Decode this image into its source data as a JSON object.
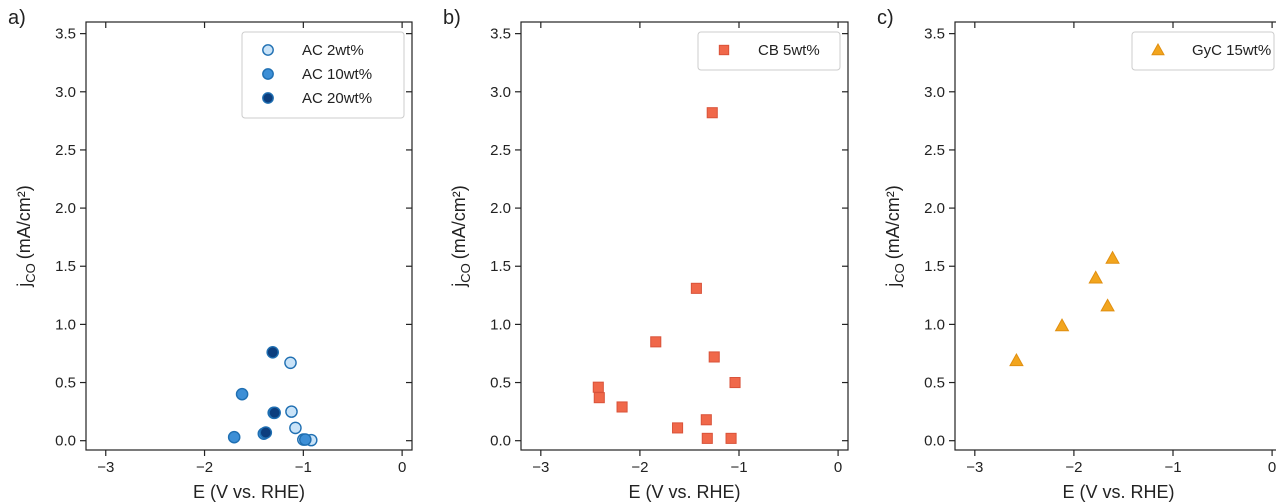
{
  "colors": {
    "ac_2wt": "#c9e3f8",
    "ac_10wt": "#3d8fd6",
    "ac_20wt": "#0c3e7e",
    "ac_edge": "#1f6fb2",
    "cb": "#f0684a",
    "gyc": "#f2a51e"
  },
  "chart_data": [
    {
      "type": "scatter",
      "panel_label": "a)",
      "xlabel": "E (V vs. RHE)",
      "ylabel": "j",
      "ylabel_subscript": "CO",
      "ylabel_units": "(mA/cm²)",
      "xlim": [
        -3.2,
        0.1
      ],
      "ylim": [
        -0.08,
        3.6
      ],
      "xticks": [
        -3,
        -2,
        -1,
        0
      ],
      "xtick_labels": [
        "−3",
        "−2",
        "−1",
        "0"
      ],
      "yticks": [
        0.0,
        0.5,
        1.0,
        1.5,
        2.0,
        2.5,
        3.0,
        3.5
      ],
      "ytick_labels": [
        "0.0",
        "0.5",
        "1.0",
        "1.5",
        "2.0",
        "2.5",
        "3.0",
        "3.5"
      ],
      "legend_position": "top-right",
      "series": [
        {
          "name": "AC 2wt%",
          "marker": "circle",
          "color": "#c9e3f8",
          "edge": "#1f6fb2",
          "x": [
            -1.13,
            -1.12,
            -1.08,
            -1.0,
            -0.92
          ],
          "y": [
            0.67,
            0.25,
            0.11,
            0.01,
            0.005
          ]
        },
        {
          "name": "AC 10wt%",
          "marker": "circle",
          "color": "#3d8fd6",
          "edge": "#1f6fb2",
          "x": [
            -1.7,
            -1.62,
            -1.4,
            -1.3,
            -0.98
          ],
          "y": [
            0.03,
            0.4,
            0.06,
            0.24,
            0.01
          ]
        },
        {
          "name": "AC 20wt%",
          "marker": "circle",
          "color": "#0c3e7e",
          "edge": "#1f6fb2",
          "x": [
            -1.38,
            -1.31,
            -1.29
          ],
          "y": [
            0.07,
            0.76,
            0.24
          ]
        }
      ]
    },
    {
      "type": "scatter",
      "panel_label": "b)",
      "xlabel": "E (V vs. RHE)",
      "ylabel": "j",
      "ylabel_subscript": "CO",
      "ylabel_units": "(mA/cm²)",
      "xlim": [
        -3.2,
        0.1
      ],
      "ylim": [
        -0.08,
        3.6
      ],
      "xticks": [
        -3,
        -2,
        -1,
        0
      ],
      "xtick_labels": [
        "−3",
        "−2",
        "−1",
        "0"
      ],
      "yticks": [
        0.0,
        0.5,
        1.0,
        1.5,
        2.0,
        2.5,
        3.0,
        3.5
      ],
      "ytick_labels": [
        "0.0",
        "0.5",
        "1.0",
        "1.5",
        "2.0",
        "2.5",
        "3.0",
        "3.5"
      ],
      "legend_position": "top-right",
      "series": [
        {
          "name": "CB 5wt%",
          "marker": "square",
          "color": "#f0684a",
          "edge": "#d9533a",
          "x": [
            -2.42,
            -2.41,
            -2.18,
            -1.84,
            -1.62,
            -1.43,
            -1.33,
            -1.32,
            -1.27,
            -1.25,
            -1.08,
            -1.04
          ],
          "y": [
            0.46,
            0.37,
            0.29,
            0.85,
            0.11,
            1.31,
            0.18,
            0.02,
            2.82,
            0.72,
            0.02,
            0.5
          ]
        }
      ]
    },
    {
      "type": "scatter",
      "panel_label": "c)",
      "xlabel": "E (V vs. RHE)",
      "ylabel": "j",
      "ylabel_subscript": "CO",
      "ylabel_units": "(mA/cm²)",
      "xlim": [
        -3.2,
        0.1
      ],
      "ylim": [
        -0.08,
        3.6
      ],
      "xticks": [
        -3,
        -2,
        -1,
        0
      ],
      "xtick_labels": [
        "−3",
        "−2",
        "−1",
        "0"
      ],
      "yticks": [
        0.0,
        0.5,
        1.0,
        1.5,
        2.0,
        2.5,
        3.0,
        3.5
      ],
      "ytick_labels": [
        "0.0",
        "0.5",
        "1.0",
        "1.5",
        "2.0",
        "2.5",
        "3.0",
        "3.5"
      ],
      "legend_position": "top-right",
      "series": [
        {
          "name": "GyC 15wt%",
          "marker": "triangle",
          "color": "#f2a51e",
          "edge": "#e08f10",
          "x": [
            -2.58,
            -2.12,
            -1.78,
            -1.66,
            -1.61
          ],
          "y": [
            0.69,
            0.99,
            1.4,
            1.16,
            1.57
          ]
        }
      ]
    }
  ]
}
